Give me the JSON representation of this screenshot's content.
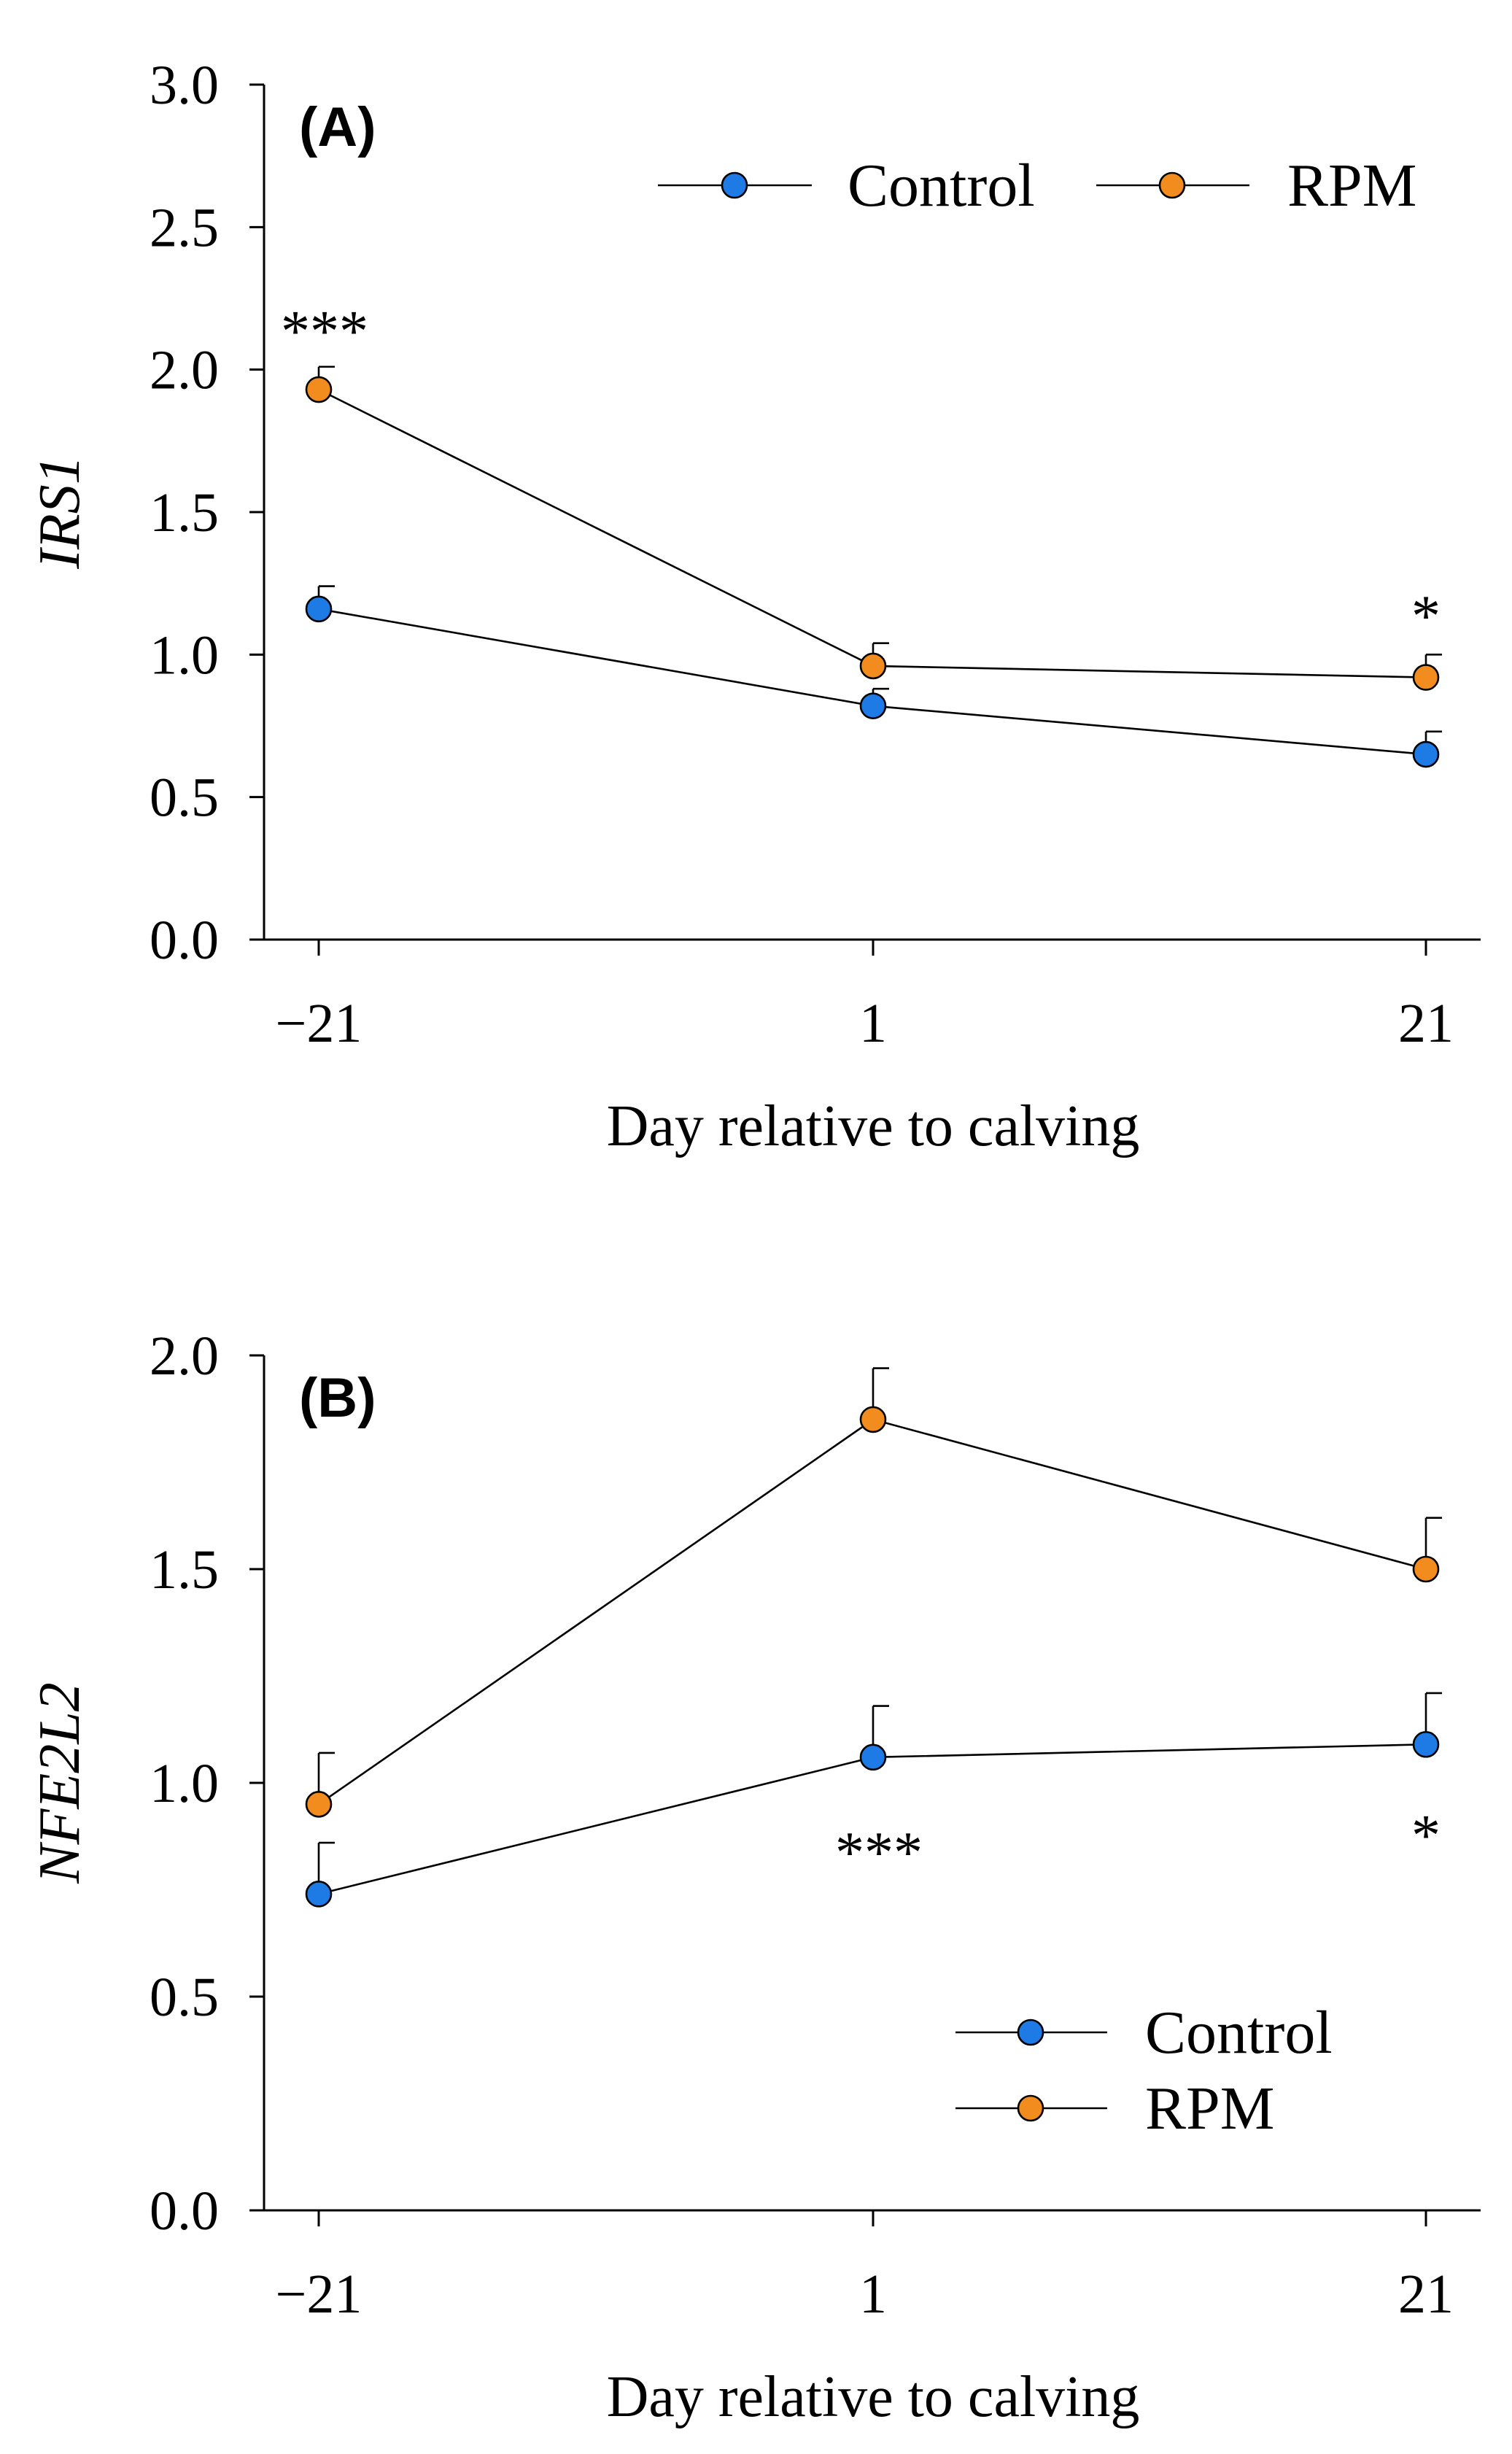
{
  "chart_data": [
    {
      "type": "line",
      "panel": "(A)",
      "title": "",
      "xlabel": "Day relative to calving",
      "ylabel": "IRS1",
      "categories": [
        "−21",
        "1",
        "21"
      ],
      "ylim": [
        0,
        3.0
      ],
      "yticks": [
        "0.0",
        "0.5",
        "1.0",
        "1.5",
        "2.0",
        "2.5",
        "3.0"
      ],
      "ytick_values": [
        0,
        0.5,
        1.0,
        1.5,
        2.0,
        2.5,
        3.0
      ],
      "legend_position": "top-right",
      "legend_layout": "horizontal",
      "series": [
        {
          "name": "Control",
          "color": "#1e7be6",
          "values": [
            1.16,
            0.82,
            0.65
          ],
          "err": [
            0.08,
            0.06,
            0.08
          ]
        },
        {
          "name": "RPM",
          "color": "#f28c1e",
          "values": [
            1.93,
            0.96,
            0.92
          ],
          "err": [
            0.08,
            0.08,
            0.08
          ]
        }
      ],
      "annotations": [
        {
          "category_index": 0,
          "text": "***",
          "value": 2.17
        },
        {
          "category_index": 2,
          "text": "*",
          "value": 1.17
        }
      ]
    },
    {
      "type": "line",
      "panel": "(B)",
      "title": "",
      "xlabel": "Day relative to calving",
      "ylabel": "NFE2L2",
      "categories": [
        "−21",
        "1",
        "21"
      ],
      "ylim": [
        0,
        2.0
      ],
      "yticks": [
        "0.0",
        "0.5",
        "1.0",
        "1.5",
        "2.0"
      ],
      "ytick_values": [
        0,
        0.5,
        1.0,
        1.5,
        2.0
      ],
      "legend_position": "bottom-right",
      "legend_layout": "vertical",
      "series": [
        {
          "name": "Control",
          "color": "#1e7be6",
          "values": [
            0.74,
            1.06,
            1.09
          ],
          "err": [
            0.12,
            0.12,
            0.12
          ]
        },
        {
          "name": "RPM",
          "color": "#f28c1e",
          "values": [
            0.95,
            1.85,
            1.5
          ],
          "err": [
            0.12,
            0.12,
            0.12
          ]
        }
      ],
      "annotations": [
        {
          "category_index": 1,
          "text": "***",
          "value": 0.86
        },
        {
          "category_index": 2,
          "text": "*",
          "value": 0.9
        }
      ]
    }
  ]
}
